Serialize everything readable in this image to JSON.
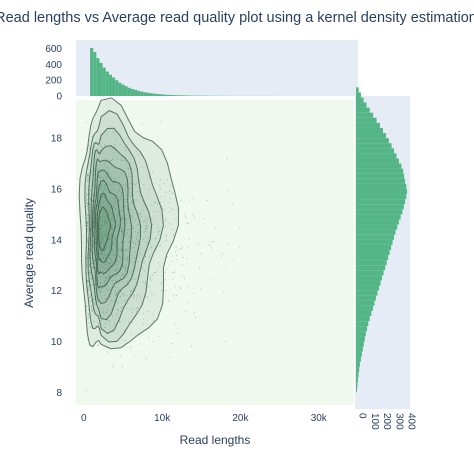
{
  "chart_data": {
    "type": "scatter",
    "title": "Read lengths vs Average read quality plot using a kernel density estimation",
    "xlabel": "Read lengths",
    "ylabel": "Average read quality",
    "xlim": [
      -1000,
      34500
    ],
    "ylim": [
      7.5,
      19.5
    ],
    "x_ticks": [
      0,
      10000,
      20000,
      30000
    ],
    "x_tick_labels": [
      "0",
      "10k",
      "20k",
      "30k"
    ],
    "y_ticks": [
      8,
      10,
      12,
      14,
      16,
      18
    ],
    "y_tick_labels": [
      "8",
      "10",
      "12",
      "14",
      "16",
      "18"
    ],
    "grid": false,
    "main_background": "#f0f9ee",
    "marginal_background": "#e5ecf6",
    "marker_color": "#3a8a5e",
    "kde_line_color": "#2f4f3c",
    "kde_fill_color": "#2d6e4b",
    "histogram_color": "#54b686",
    "kde_contours": {
      "center": [
        2200,
        14.4
      ],
      "levels": [
        {
          "rx": 9500,
          "ry": 4.8,
          "skew": 0.55
        },
        {
          "rx": 7300,
          "ry": 4.3,
          "skew": 0.55
        },
        {
          "rx": 5900,
          "ry": 3.8,
          "skew": 0.55
        },
        {
          "rx": 4800,
          "ry": 3.3,
          "skew": 0.55
        },
        {
          "rx": 3900,
          "ry": 2.8,
          "skew": 0.55
        },
        {
          "rx": 3100,
          "ry": 2.3,
          "skew": 0.55
        },
        {
          "rx": 2400,
          "ry": 1.8,
          "skew": 0.55
        },
        {
          "rx": 1700,
          "ry": 1.3,
          "skew": 0.55
        },
        {
          "rx": 1100,
          "ry": 0.8,
          "skew": 0.55
        }
      ]
    },
    "top_histogram": {
      "axis_ticks": [
        0,
        200,
        400,
        600
      ],
      "axis_tick_labels": [
        "0",
        "200",
        "400",
        "600"
      ],
      "ylim": [
        0,
        660
      ],
      "bin_width": 400,
      "bin_start": 800,
      "counts": [
        610,
        560,
        480,
        420,
        360,
        310,
        270,
        235,
        200,
        170,
        145,
        125,
        105,
        90,
        78,
        66,
        56,
        48,
        41,
        35,
        30,
        26,
        22,
        19,
        16,
        14,
        12,
        10,
        9,
        8,
        7,
        6,
        5,
        5,
        4,
        4,
        3,
        3,
        3,
        2,
        2,
        2,
        2,
        2,
        1,
        1,
        1,
        1,
        1,
        1,
        1,
        1,
        1,
        1,
        1,
        1,
        1,
        1,
        1,
        1
      ]
    },
    "right_histogram": {
      "axis_ticks": [
        0,
        100,
        200,
        300,
        400
      ],
      "axis_tick_labels": [
        "0",
        "100",
        "200",
        "300",
        "400"
      ],
      "xlim": [
        0,
        440
      ],
      "bin_width": 0.2,
      "bin_start": 8.0,
      "counts": [
        8,
        12,
        16,
        20,
        26,
        32,
        40,
        48,
        56,
        64,
        72,
        80,
        90,
        100,
        112,
        125,
        138,
        150,
        162,
        175,
        188,
        200,
        212,
        225,
        238,
        250,
        262,
        274,
        286,
        298,
        310,
        322,
        336,
        350,
        364,
        378,
        390,
        400,
        410,
        416,
        410,
        400,
        392,
        384,
        370,
        350,
        330,
        310,
        290,
        268,
        245,
        220,
        195,
        168,
        140,
        112,
        86,
        62,
        40,
        22
      ]
    }
  }
}
